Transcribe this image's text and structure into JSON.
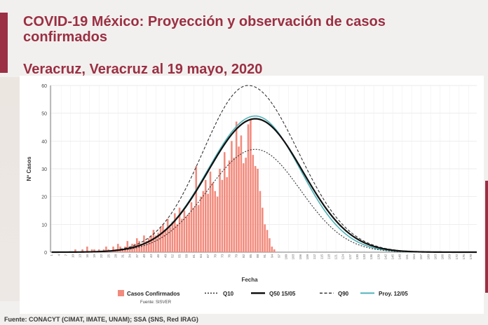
{
  "header": {
    "title": "COVID-19 México: Proyección y observación de casos confirmados",
    "subtitle": "Veracruz, Veracruz al 19 mayo, 2020"
  },
  "footer": {
    "source": "Fuente: CONACYT (CIMAT, IMATE, UNAM);   SSA (SNS, Red IRAG)"
  },
  "colors": {
    "accent": "#9b2f43",
    "bars": "#f28b7d",
    "q50": "#111111",
    "proy": "#4fb3b9",
    "q10": "#333333",
    "q90": "#333333"
  },
  "chart_data": {
    "type": "bar",
    "title": "",
    "xlabel": "Fecha",
    "ylabel": "Nº Casos",
    "ylim": [
      0,
      60
    ],
    "yticks": [
      0,
      10,
      20,
      30,
      40,
      50,
      60
    ],
    "grid": true,
    "legend_position": "bottom",
    "legend_note": "Fuente: SISVER",
    "categories": [
      "1",
      "2",
      "3",
      "4",
      "5",
      "6",
      "7",
      "8",
      "9",
      "10",
      "11",
      "12",
      "13",
      "14",
      "15",
      "16",
      "17",
      "18",
      "19",
      "20",
      "21",
      "22",
      "23",
      "24",
      "25",
      "26",
      "27",
      "28",
      "29",
      "30",
      "31",
      "32",
      "33",
      "34",
      "35",
      "36",
      "37",
      "38",
      "39",
      "40",
      "41",
      "42",
      "43",
      "44",
      "45",
      "46",
      "47",
      "48",
      "49",
      "50",
      "51",
      "52",
      "53",
      "54",
      "55",
      "56",
      "57",
      "58",
      "59",
      "60",
      "61",
      "62",
      "63",
      "64",
      "65",
      "66",
      "67",
      "68",
      "69",
      "70",
      "71",
      "72",
      "73",
      "74",
      "75",
      "76",
      "77",
      "78",
      "79",
      "80",
      "81",
      "82",
      "83",
      "84",
      "85",
      "86",
      "87",
      "88",
      "89",
      "90",
      "91",
      "92",
      "93",
      "94",
      "95",
      "96",
      "97",
      "98",
      "99",
      "100",
      "101",
      "102",
      "103",
      "104",
      "105",
      "106",
      "107",
      "108",
      "109",
      "110",
      "111",
      "112",
      "113",
      "114",
      "115",
      "116",
      "117",
      "118",
      "119",
      "120",
      "121",
      "122",
      "123",
      "124",
      "125",
      "126",
      "127",
      "128",
      "129",
      "130",
      "131",
      "132",
      "133",
      "134",
      "135",
      "136",
      "137",
      "138",
      "139",
      "140",
      "141",
      "142",
      "143",
      "144",
      "145",
      "146",
      "147",
      "148",
      "149",
      "150",
      "151",
      "152",
      "153",
      "154",
      "155",
      "156",
      "157",
      "158",
      "159",
      "160",
      "161",
      "162",
      "163",
      "164",
      "165",
      "166",
      "167",
      "168",
      "169",
      "170",
      "171",
      "172",
      "173",
      "174",
      "175",
      "176",
      "177",
      "178",
      "179",
      "180"
    ],
    "series": [
      {
        "name": "Casos Confirmados",
        "type": "bar",
        "values": [
          0,
          0,
          0,
          0,
          0,
          0,
          0,
          0,
          0,
          0,
          1,
          0,
          0,
          1,
          0,
          2,
          0,
          1,
          1,
          0,
          1,
          0,
          1,
          2,
          1,
          0,
          2,
          1,
          3,
          2,
          1,
          2,
          4,
          2,
          3,
          3,
          5,
          4,
          3,
          6,
          4,
          5,
          6,
          8,
          6,
          7,
          9,
          10,
          8,
          12,
          9,
          11,
          14,
          10,
          16,
          12,
          15,
          13,
          14,
          18,
          16,
          31,
          17,
          20,
          22,
          26,
          21,
          29,
          25,
          22,
          20,
          30,
          26,
          36,
          27,
          33,
          40,
          34,
          47,
          38,
          42,
          32,
          34,
          46,
          48,
          35,
          31,
          30,
          22,
          16,
          10,
          8,
          5,
          2,
          1,
          0,
          0,
          0,
          0,
          0,
          0,
          0,
          0,
          0,
          0,
          0,
          0,
          0,
          0,
          0,
          0,
          0,
          0,
          0,
          0,
          0,
          0,
          0,
          0,
          0,
          0,
          0,
          0,
          0,
          0,
          0,
          0,
          0,
          0,
          0,
          0,
          0,
          0,
          0,
          0,
          0,
          0,
          0,
          0,
          0,
          0,
          0,
          0,
          0,
          0,
          0,
          0,
          0,
          0,
          0,
          0,
          0,
          0,
          0,
          0,
          0,
          0,
          0,
          0,
          0,
          0,
          0,
          0,
          0,
          0,
          0,
          0,
          0,
          0,
          0,
          0,
          0,
          0,
          0,
          0,
          0,
          0,
          0,
          0,
          0
        ]
      },
      {
        "name": "Q10",
        "type": "line",
        "style": "dotted",
        "peak": 37,
        "peak_index": 86,
        "sigma_left": 20,
        "sigma_right": 19
      },
      {
        "name": "Q50 15/05",
        "type": "line",
        "style": "solid",
        "peak": 48,
        "peak_index": 86,
        "sigma_left": 20,
        "sigma_right": 20
      },
      {
        "name": "Q90",
        "type": "line",
        "style": "dashed",
        "peak": 60,
        "peak_index": 83,
        "sigma_left": 19,
        "sigma_right": 21
      },
      {
        "name": "Proy. 12/05",
        "type": "line",
        "style": "solid",
        "peak": 49,
        "peak_index": 86,
        "sigma_left": 20,
        "sigma_right": 19
      }
    ]
  }
}
